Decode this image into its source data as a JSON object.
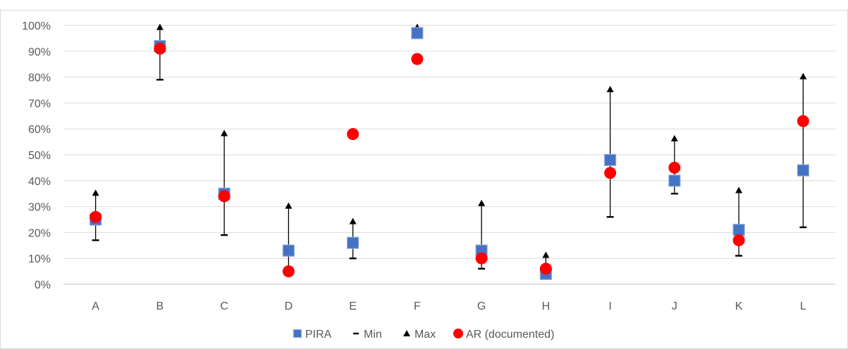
{
  "chart_data": {
    "type": "scatter",
    "title": "",
    "xlabel": "",
    "ylabel": "",
    "ylim": [
      0,
      100
    ],
    "y_ticks": [
      "0%",
      "10%",
      "20%",
      "30%",
      "40%",
      "50%",
      "60%",
      "70%",
      "80%",
      "90%",
      "100%"
    ],
    "y_tick_values": [
      0,
      10,
      20,
      30,
      40,
      50,
      60,
      70,
      80,
      90,
      100
    ],
    "categories": [
      "A",
      "B",
      "C",
      "D",
      "E",
      "F",
      "G",
      "H",
      "I",
      "J",
      "K",
      "L"
    ],
    "grid": true,
    "legend_position": "bottom",
    "series": [
      {
        "name": "PIRA",
        "marker": "square",
        "color": "#4472c4",
        "values": [
          25,
          92,
          35,
          13,
          16,
          97,
          13,
          4,
          48,
          40,
          21,
          44
        ]
      },
      {
        "name": "Min",
        "marker": "dash",
        "color": "#000000",
        "values": [
          17,
          79,
          19,
          6,
          10,
          97,
          6,
          3,
          26,
          35,
          11,
          22
        ]
      },
      {
        "name": "Max",
        "marker": "triangle",
        "color": "#000000",
        "values": [
          35,
          99,
          58,
          30,
          24,
          99,
          31,
          11,
          75,
          56,
          36,
          80
        ]
      },
      {
        "name": "AR (documented)",
        "marker": "circle",
        "color": "#ff0000",
        "values": [
          26,
          91,
          34,
          5,
          58,
          87,
          10,
          6,
          43,
          45,
          17,
          63
        ]
      }
    ]
  }
}
